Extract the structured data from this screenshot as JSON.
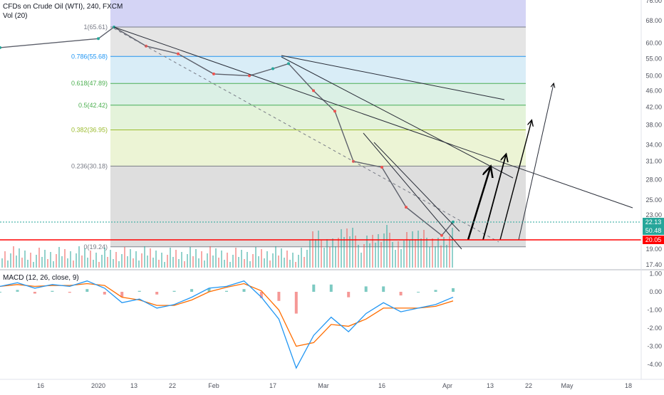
{
  "main_legend": {
    "symbol": "CFDs on Crude Oil (WTI), 240, FXCM",
    "volume": "Vol (20)"
  },
  "macd_legend": "MACD (12, 26, close, 9)",
  "colors": {
    "up": "#26a69a",
    "down": "#ef5350",
    "macd_line": "#2196f3",
    "signal_line": "#ff6d00",
    "support_line": "#ff0000"
  },
  "price_axis": {
    "ticks": [
      "76.00",
      "68.00",
      "60.00",
      "55.00",
      "50.00",
      "46.00",
      "42.00",
      "38.00",
      "34.00",
      "31.00",
      "28.00",
      "25.00",
      "23.00",
      "20.00",
      "19.00",
      "17.40"
    ],
    "badges": [
      {
        "label": "22.13",
        "color": "#26a69a"
      },
      {
        "label": "50.48",
        "color": "#26a69a"
      },
      {
        "label": "20.05",
        "color": "#ff0000"
      }
    ]
  },
  "macd_axis": {
    "ticks": [
      "1.00",
      "0.00",
      "-1.00",
      "-2.00",
      "-3.00",
      "-4.00"
    ]
  },
  "time_axis": {
    "ticks": [
      "16",
      "2020",
      "13",
      "22",
      "Feb",
      "17",
      "Mar",
      "16",
      "Apr",
      "13",
      "22",
      "May",
      "18"
    ]
  },
  "fib_levels": [
    {
      "label": "1(65.61)",
      "value": 65.61,
      "color": "#787b86"
    },
    {
      "label": "0.786(55.68)",
      "value": 55.68,
      "color": "#2196f3"
    },
    {
      "label": "0.618(47.89)",
      "value": 47.89,
      "color": "#4caf50"
    },
    {
      "label": "0.5(42.42)",
      "value": 42.42,
      "color": "#4caf50"
    },
    {
      "label": "0.382(36.95)",
      "value": 36.95,
      "color": "#9bbb2d"
    },
    {
      "label": "0.236(30.18)",
      "value": 30.18,
      "color": "#787b86"
    },
    {
      "label": "0(19.24)",
      "value": 19.24,
      "color": "#787b86"
    }
  ],
  "chart_data": {
    "type": "line",
    "title": "CFDs on Crude Oil (WTI), 240, FXCM",
    "y_axis_labels": [
      76,
      68,
      60,
      55,
      50,
      46,
      42,
      38,
      34,
      31,
      28,
      25,
      23,
      20,
      19,
      17.4
    ],
    "y_scale": "log",
    "x_axis_labels": [
      "16",
      "2020",
      "13",
      "22",
      "Feb",
      "17",
      "Mar",
      "16",
      "Apr",
      "13",
      "22",
      "May",
      "18"
    ],
    "price_series": [
      {
        "date": "Dec 16",
        "value": 58.5
      },
      {
        "date": "2020",
        "value": 61.5
      },
      {
        "date": "Jan 6",
        "value": 65.6
      },
      {
        "date": "Jan 13",
        "value": 59.0
      },
      {
        "date": "Jan 22",
        "value": 56.5
      },
      {
        "date": "Feb 1",
        "value": 50.5
      },
      {
        "date": "Feb 10",
        "value": 50.0
      },
      {
        "date": "Feb 17",
        "value": 52.0
      },
      {
        "date": "Feb 22",
        "value": 53.5
      },
      {
        "date": "Mar 1",
        "value": 46.0
      },
      {
        "date": "Mar 6",
        "value": 41.0
      },
      {
        "date": "Mar 9",
        "value": 31.0
      },
      {
        "date": "Mar 16",
        "value": 30.0
      },
      {
        "date": "Mar 23",
        "value": 24.0
      },
      {
        "date": "Apr 1",
        "value": 20.5
      },
      {
        "date": "Apr 3",
        "value": 22.1
      }
    ],
    "fibonacci": [
      {
        "ratio": 1,
        "price": 65.61
      },
      {
        "ratio": 0.786,
        "price": 55.68
      },
      {
        "ratio": 0.618,
        "price": 47.89
      },
      {
        "ratio": 0.5,
        "price": 42.42
      },
      {
        "ratio": 0.382,
        "price": 36.95
      },
      {
        "ratio": 0.236,
        "price": 30.18
      },
      {
        "ratio": 0,
        "price": 19.24
      }
    ],
    "support_level": 20.05,
    "last_price": 22.13,
    "macd": {
      "params": "12, 26, close, 9",
      "y_axis_labels": [
        1,
        0,
        -1,
        -2,
        -3,
        -4
      ],
      "macd_series": [
        0.3,
        0.5,
        0.2,
        0.4,
        0.3,
        0.6,
        0.2,
        -0.6,
        -0.4,
        -0.9,
        -0.7,
        -0.3,
        0.2,
        0.3,
        0.6,
        -0.3,
        -1.5,
        -4.2,
        -2.4,
        -1.4,
        -2.2,
        -1.2,
        -0.6,
        -1.1,
        -0.9,
        -0.7,
        -0.3
      ],
      "signal_series": [
        0.3,
        0.4,
        0.3,
        0.35,
        0.35,
        0.45,
        0.35,
        -0.3,
        -0.45,
        -0.75,
        -0.75,
        -0.45,
        0.0,
        0.25,
        0.45,
        0.05,
        -1.0,
        -3.0,
        -2.8,
        -1.8,
        -1.9,
        -1.5,
        -0.9,
        -0.9,
        -0.9,
        -0.8,
        -0.5
      ]
    }
  }
}
